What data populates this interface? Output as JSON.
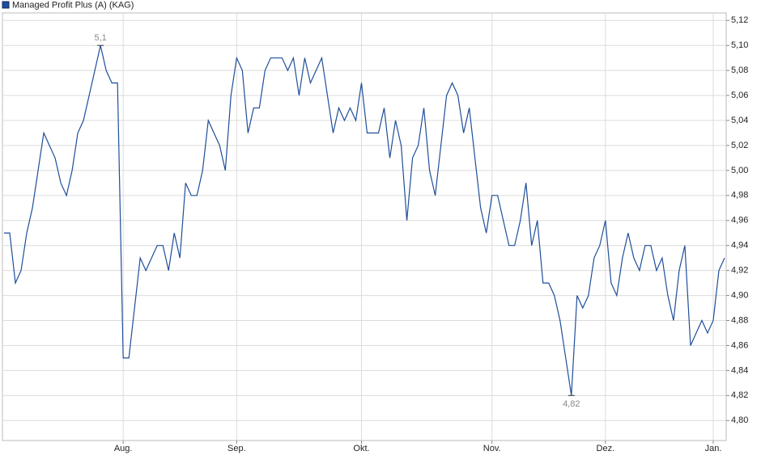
{
  "chart_data": {
    "type": "line",
    "series": [
      {
        "name": "Managed Profit Plus (A) (KAG)",
        "color": "#1f4e9a",
        "values": [
          4.95,
          4.95,
          4.91,
          4.92,
          4.95,
          4.97,
          5.0,
          5.03,
          5.02,
          5.01,
          4.99,
          4.98,
          5.0,
          5.03,
          5.04,
          5.06,
          5.08,
          5.1,
          5.08,
          5.07,
          5.07,
          4.85,
          4.85,
          4.89,
          4.93,
          4.92,
          4.93,
          4.94,
          4.94,
          4.92,
          4.95,
          4.93,
          4.99,
          4.98,
          4.98,
          5.0,
          5.04,
          5.03,
          5.02,
          5.0,
          5.06,
          5.09,
          5.08,
          5.03,
          5.05,
          5.05,
          5.08,
          5.09,
          5.09,
          5.09,
          5.08,
          5.09,
          5.06,
          5.09,
          5.07,
          5.08,
          5.09,
          5.06,
          5.03,
          5.05,
          5.04,
          5.05,
          5.04,
          5.07,
          5.03,
          5.03,
          5.03,
          5.05,
          5.01,
          5.04,
          5.02,
          4.96,
          5.01,
          5.02,
          5.05,
          5.0,
          4.98,
          5.02,
          5.06,
          5.07,
          5.06,
          5.03,
          5.05,
          5.01,
          4.97,
          4.95,
          4.98,
          4.98,
          4.96,
          4.94,
          4.94,
          4.96,
          4.99,
          4.94,
          4.96,
          4.91,
          4.91,
          4.9,
          4.88,
          4.85,
          4.82,
          4.9,
          4.89,
          4.9,
          4.93,
          4.94,
          4.96,
          4.91,
          4.9,
          4.93,
          4.95,
          4.93,
          4.92,
          4.94,
          4.94,
          4.92,
          4.93,
          4.9,
          4.88,
          4.92,
          4.94,
          4.86,
          4.87,
          4.88,
          4.87,
          4.88,
          4.92,
          4.93
        ]
      }
    ],
    "categories": [
      null,
      null,
      null,
      null,
      null,
      null,
      null,
      null,
      null,
      null,
      null,
      null,
      null,
      null,
      null,
      null,
      null,
      null,
      null,
      null,
      null,
      "Aug.",
      null,
      null,
      null,
      null,
      null,
      null,
      null,
      null,
      null,
      null,
      null,
      null,
      null,
      null,
      null,
      null,
      null,
      null,
      null,
      "Sep.",
      null,
      null,
      null,
      null,
      null,
      null,
      null,
      null,
      null,
      null,
      null,
      null,
      null,
      null,
      null,
      null,
      null,
      null,
      null,
      null,
      null,
      "Okt.",
      null,
      null,
      null,
      null,
      null,
      null,
      null,
      null,
      null,
      null,
      null,
      null,
      null,
      null,
      null,
      null,
      null,
      null,
      null,
      null,
      null,
      null,
      "Nov.",
      null,
      null,
      null,
      null,
      null,
      null,
      null,
      null,
      null,
      null,
      null,
      null,
      null,
      null,
      null,
      null,
      null,
      null,
      null,
      "Dez.",
      null,
      null,
      null,
      null,
      null,
      null,
      null,
      null,
      null,
      null,
      null,
      null,
      null,
      null,
      null,
      null,
      null,
      null,
      "Jan.",
      null,
      null
    ],
    "max_label": "5,1",
    "min_label": "4,82",
    "ylim": [
      4.784,
      5.126
    ],
    "yticks": [
      {
        "value": 4.8,
        "label": "4,80"
      },
      {
        "value": 4.82,
        "label": "4,82"
      },
      {
        "value": 4.84,
        "label": "4,84"
      },
      {
        "value": 4.86,
        "label": "4,86"
      },
      {
        "value": 4.88,
        "label": "4,88"
      },
      {
        "value": 4.9,
        "label": "4,90"
      },
      {
        "value": 4.92,
        "label": "4,92"
      },
      {
        "value": 4.94,
        "label": "4,94"
      },
      {
        "value": 4.96,
        "label": "4,96"
      },
      {
        "value": 4.98,
        "label": "4,98"
      },
      {
        "value": 5.0,
        "label": "5,00"
      },
      {
        "value": 5.02,
        "label": "5,02"
      },
      {
        "value": 5.04,
        "label": "5,04"
      },
      {
        "value": 5.06,
        "label": "5,06"
      },
      {
        "value": 5.08,
        "label": "5,08"
      },
      {
        "value": 5.1,
        "label": "5,10"
      },
      {
        "value": 5.12,
        "label": "5,12"
      }
    ],
    "grid": true
  }
}
